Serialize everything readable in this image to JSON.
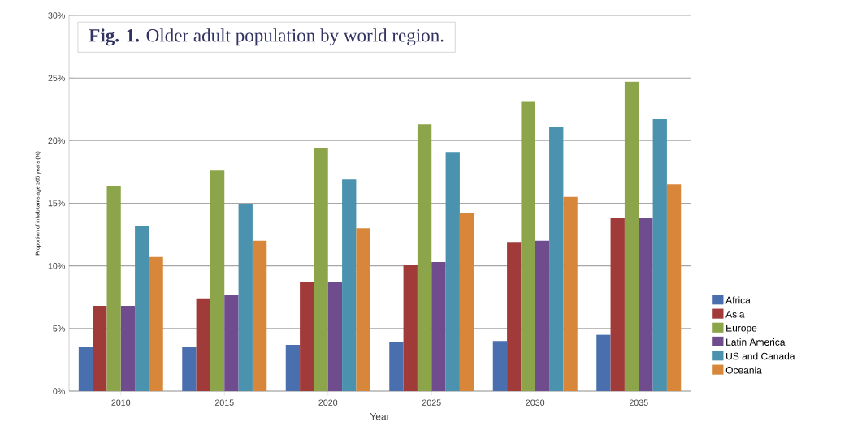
{
  "chart_data": {
    "type": "bar",
    "title": "**Fig. 1.** Older adult population by world region.",
    "xlabel": "Year",
    "ylabel": "Proportion of inhabitants age ≥65 years (%)",
    "categories": [
      "2010",
      "2015",
      "2020",
      "2025",
      "2030",
      "2035"
    ],
    "series": [
      {
        "name": "Africa",
        "color": "#4a6fae",
        "values": [
          3.5,
          3.5,
          3.7,
          3.9,
          4.0,
          4.5
        ]
      },
      {
        "name": "Asia",
        "color": "#a13b3a",
        "values": [
          6.8,
          7.4,
          8.7,
          10.1,
          11.9,
          13.8
        ]
      },
      {
        "name": "Europe",
        "color": "#8ca54a",
        "values": [
          16.4,
          17.6,
          19.4,
          21.3,
          23.1,
          24.7
        ]
      },
      {
        "name": "Latin America",
        "color": "#6e4c8e",
        "values": [
          6.8,
          7.7,
          8.7,
          10.3,
          12.0,
          13.8
        ]
      },
      {
        "name": "US and Canada",
        "color": "#4a92ae",
        "values": [
          13.2,
          14.9,
          16.9,
          19.1,
          21.1,
          21.7
        ]
      },
      {
        "name": "Oceania",
        "color": "#d8873a",
        "values": [
          10.7,
          12.0,
          13.0,
          14.2,
          15.5,
          16.5
        ]
      }
    ],
    "ylim": [
      0,
      30
    ],
    "yticks": [
      {
        "value": 0,
        "label": "0%"
      },
      {
        "value": 5,
        "label": "5%"
      },
      {
        "value": 10,
        "label": "10%"
      },
      {
        "value": 15,
        "label": "15%"
      },
      {
        "value": 20,
        "label": "20%"
      },
      {
        "value": 25,
        "label": "25%"
      },
      {
        "value": 30,
        "label": "30%"
      }
    ],
    "grid": "y",
    "legend": "right"
  }
}
